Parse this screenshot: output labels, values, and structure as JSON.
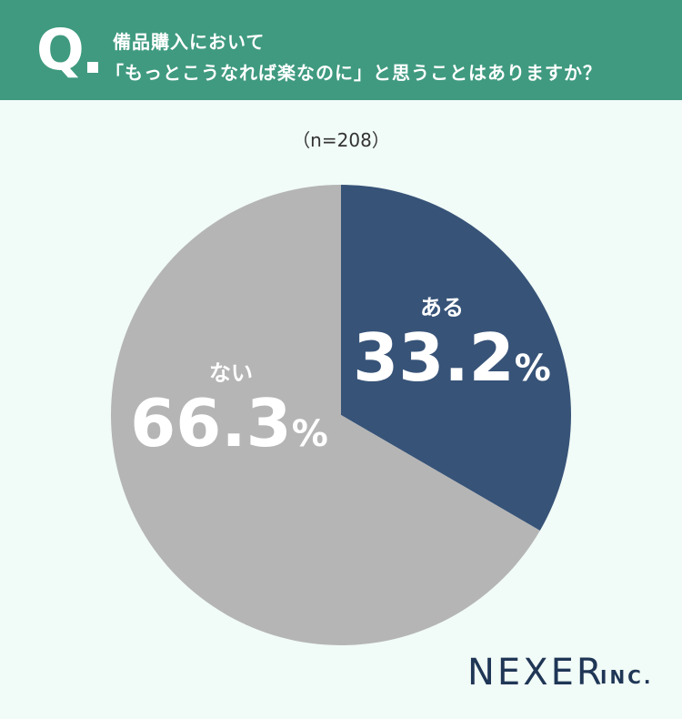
{
  "header": {
    "q": "Q",
    "line1": "備品購入において",
    "line2": "「もっとこうなれば楽なのに」と思うことはありますか？"
  },
  "sample": "（n=208）",
  "chart_data": {
    "type": "pie",
    "categories": [
      "ある",
      "ない"
    ],
    "values": [
      33.2,
      66.3
    ],
    "value_suffix": "%",
    "colors": [
      "#375378",
      "#b5b5b5"
    ],
    "start_angle": "top, clockwise"
  },
  "logo": {
    "name": "NEXER",
    "suffix": "INC."
  }
}
